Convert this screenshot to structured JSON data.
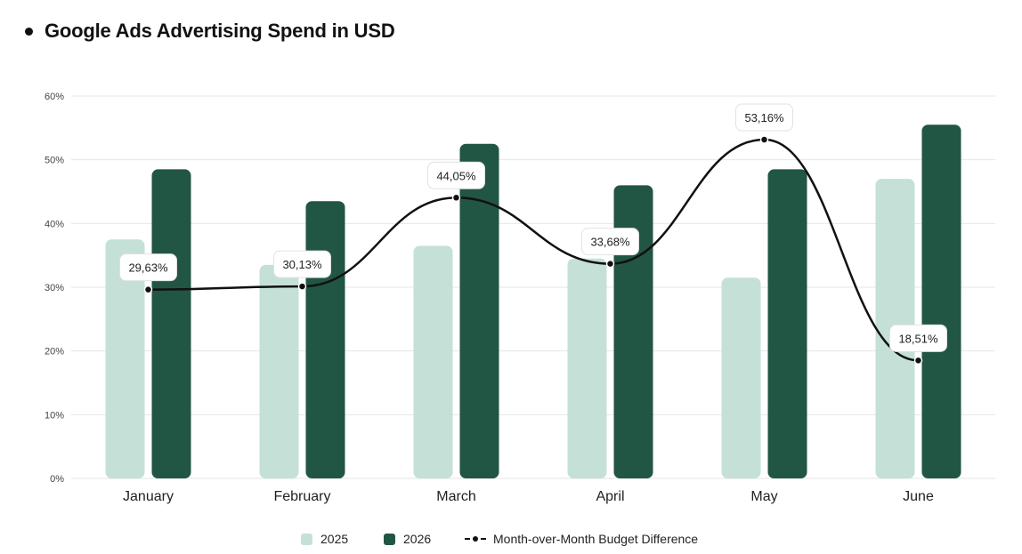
{
  "title": "Google Ads Advertising Spend in USD",
  "colors": {
    "series_2025": "#c5e0d7",
    "series_2026": "#215544",
    "line": "#111111",
    "grid": "#e6e6e6"
  },
  "legend": {
    "item_2025": "2025",
    "item_2026": "2026",
    "item_line": "Month-over-Month Budget Difference"
  },
  "chart_data": {
    "type": "bar",
    "title": "Google Ads Advertising Spend in USD",
    "categories": [
      "January",
      "February",
      "March",
      "April",
      "May",
      "June"
    ],
    "series": [
      {
        "name": "2025",
        "type": "bar",
        "values": [
          37.5,
          33.5,
          36.5,
          34.5,
          31.5,
          47
        ]
      },
      {
        "name": "2026",
        "type": "bar",
        "values": [
          48.5,
          43.5,
          52.5,
          46,
          48.5,
          55.5
        ]
      },
      {
        "name": "Month-over-Month Budget Difference",
        "type": "line",
        "values": [
          29.63,
          30.13,
          44.05,
          33.68,
          53.16,
          18.51
        ],
        "labels": [
          "29,63%",
          "30,13%",
          "44,05%",
          "33,68%",
          "53,16%",
          "18,51%"
        ]
      }
    ],
    "ylim": [
      0,
      60
    ],
    "yticks": [
      "0%",
      "10%",
      "20%",
      "30%",
      "40%",
      "50%",
      "60%"
    ],
    "grid": true,
    "legend_position": "bottom"
  }
}
